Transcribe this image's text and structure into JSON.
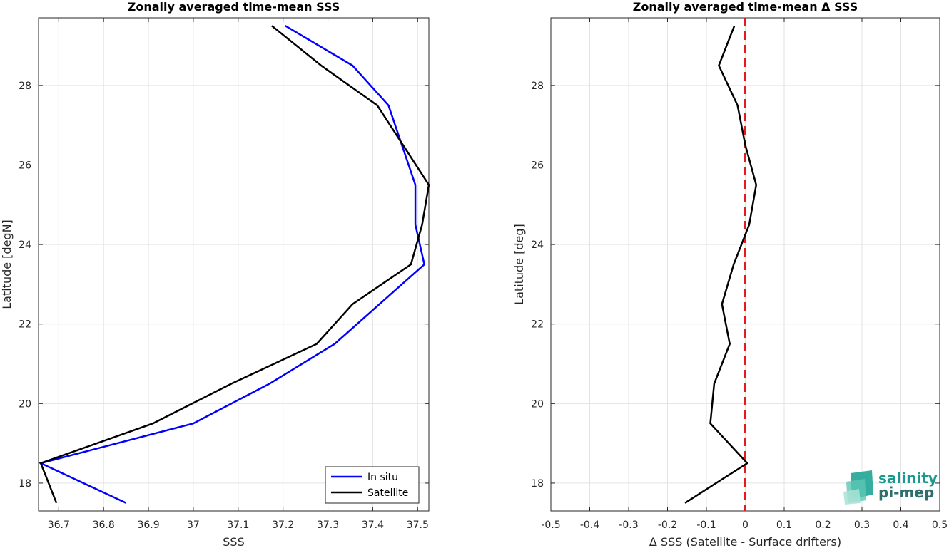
{
  "chart_data": [
    {
      "type": "line",
      "title": "Zonally averaged time-mean SSS",
      "xlabel": "SSS",
      "ylabel": "Latitude [degN]",
      "xlim": [
        36.655,
        37.525
      ],
      "ylim": [
        17.3,
        29.7
      ],
      "xticks": [
        36.7,
        36.8,
        36.9,
        37.0,
        37.1,
        37.2,
        37.3,
        37.4,
        37.5
      ],
      "xtick_labels": [
        "36.7",
        "36.8",
        "36.9",
        "37",
        "37.1",
        "37.2",
        "37.3",
        "37.4",
        "37.5"
      ],
      "yticks": [
        18,
        20,
        22,
        24,
        26,
        28
      ],
      "ytick_labels": [
        "18",
        "20",
        "22",
        "24",
        "26",
        "28"
      ],
      "grid": true,
      "legend": "bottom-right",
      "series": [
        {
          "name": "In situ",
          "color": "#0000ff",
          "x": [
            36.85,
            36.66,
            37.0,
            37.17,
            37.315,
            37.415,
            37.515,
            37.495,
            37.495,
            37.435,
            37.355,
            37.205
          ],
          "y": [
            17.5,
            18.5,
            19.5,
            20.5,
            21.5,
            22.5,
            23.5,
            24.5,
            25.5,
            27.5,
            28.5,
            29.5
          ]
        },
        {
          "name": "Satellite",
          "color": "#000000",
          "x": [
            36.695,
            36.66,
            36.91,
            37.085,
            37.275,
            37.355,
            37.485,
            37.51,
            37.525,
            37.41,
            37.285,
            37.175
          ],
          "y": [
            17.5,
            18.5,
            19.5,
            20.5,
            21.5,
            22.5,
            23.5,
            24.5,
            25.5,
            27.5,
            28.5,
            29.5
          ]
        }
      ]
    },
    {
      "type": "line",
      "title": "Zonally averaged time-mean Δ SSS",
      "xlabel": "Δ SSS (Satellite - Surface drifters)",
      "ylabel": "Latitude [deg]",
      "xlim": [
        -0.5,
        0.5
      ],
      "ylim": [
        17.3,
        29.7
      ],
      "xticks": [
        -0.5,
        -0.4,
        -0.3,
        -0.2,
        -0.1,
        0,
        0.1,
        0.2,
        0.3,
        0.4,
        0.5
      ],
      "xtick_labels": [
        "-0.5",
        "-0.4",
        "-0.3",
        "-0.2",
        "-0.1",
        "0",
        "0.1",
        "0.2",
        "0.3",
        "0.4",
        "0.5"
      ],
      "yticks": [
        18,
        20,
        22,
        24,
        26,
        28
      ],
      "ytick_labels": [
        "18",
        "20",
        "22",
        "24",
        "26",
        "28"
      ],
      "grid": true,
      "reference_line": {
        "x": 0,
        "color": "#e41a1c",
        "style": "dashed"
      },
      "series": [
        {
          "color": "#000000",
          "x": [
            -0.155,
            0.005,
            -0.09,
            -0.08,
            -0.04,
            -0.06,
            -0.03,
            0.01,
            0.028,
            0.0,
            -0.02,
            -0.068,
            -0.028
          ],
          "y": [
            17.5,
            18.5,
            19.5,
            20.5,
            21.5,
            22.5,
            23.5,
            24.5,
            25.5,
            26.5,
            27.5,
            28.5,
            29.5
          ]
        }
      ]
    }
  ],
  "logo": {
    "line1": "salinity",
    "line2": "pi-mep"
  }
}
